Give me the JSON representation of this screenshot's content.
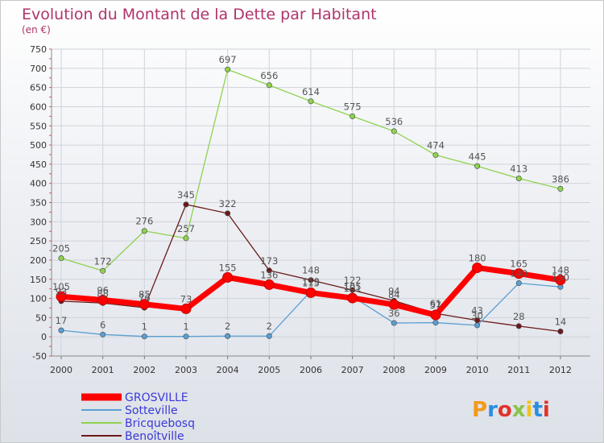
{
  "chart_data": {
    "type": "line",
    "title": "Evolution du Montant de la Dette par Habitant",
    "subtitle": "(en €)",
    "x": [
      "2000",
      "2001",
      "2002",
      "2003",
      "2004",
      "2005",
      "2006",
      "2007",
      "2008",
      "2009",
      "2010",
      "2011",
      "2012"
    ],
    "yticks": [
      -50,
      0,
      50,
      100,
      150,
      200,
      250,
      300,
      350,
      400,
      450,
      500,
      550,
      600,
      650,
      700,
      750
    ],
    "ylim": [
      -50,
      750
    ],
    "grid": true,
    "legend_position": "bottom-left",
    "series": [
      {
        "name": "GROSVILLE",
        "color": "#ff0000",
        "values": [
          105,
          96,
          85,
          73,
          155,
          136,
          115,
          101,
          84,
          57,
          180,
          165,
          148
        ]
      },
      {
        "name": "Sotteville",
        "color": "#5a9fd4",
        "values": [
          17,
          6,
          1,
          1,
          2,
          2,
          119,
          105,
          36,
          37,
          30,
          140,
          130
        ]
      },
      {
        "name": "Bricquebosq",
        "color": "#8fd24f",
        "values": [
          205,
          172,
          276,
          257,
          697,
          656,
          614,
          575,
          536,
          474,
          445,
          413,
          386
        ]
      },
      {
        "name": "Benoîtville",
        "color": "#6b1a1a",
        "values": [
          93,
          88,
          76,
          345,
          322,
          173,
          148,
          122,
          94,
          61,
          43,
          28,
          14
        ]
      }
    ],
    "data_labels": [
      [
        "105",
        "96",
        "85",
        "73",
        "155",
        "136",
        "115",
        "101",
        "84",
        "57",
        "180",
        "165",
        "148"
      ],
      [
        "17",
        "6",
        "1",
        "1",
        "2",
        "2",
        "119",
        "105",
        "36",
        "",
        "30",
        "140",
        "130"
      ],
      [
        "205",
        "172",
        "276",
        "257",
        "697",
        "656",
        "614",
        "575",
        "536",
        "474",
        "445",
        "413",
        "386"
      ],
      [
        "93",
        "88",
        "76",
        "345",
        "322",
        "173",
        "148",
        "122",
        "94",
        "61",
        "43",
        "28",
        "14"
      ]
    ]
  },
  "logo": {
    "text": "Proxiti",
    "colors": [
      "#f29a1a",
      "#2b8de0",
      "#e0332b",
      "#8bc34a",
      "#f2c21a",
      "#2b8de0",
      "#e0332b"
    ]
  }
}
